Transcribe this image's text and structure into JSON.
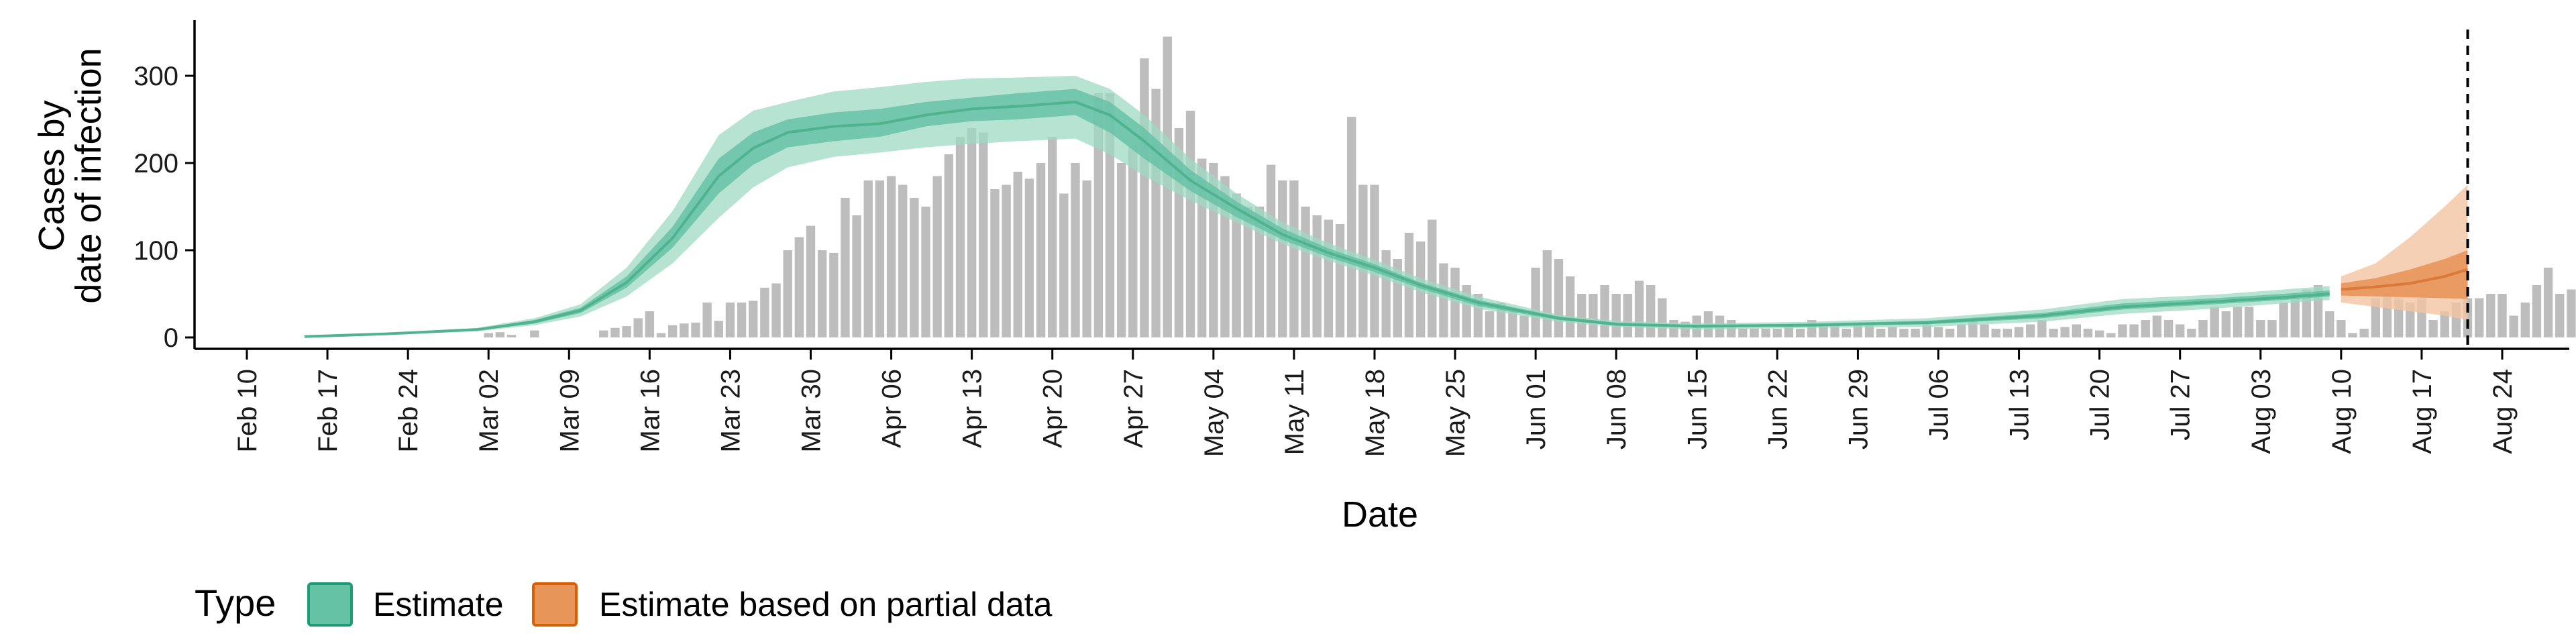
{
  "chart_data": {
    "type": "area",
    "title": "",
    "xlabel": "Date",
    "ylabel_lines": [
      "Cases by",
      "date of infection"
    ],
    "y_range": [
      0,
      360
    ],
    "y_ticks": [
      0,
      100,
      200,
      300
    ],
    "x_range": [
      "2020-02-06",
      "2020-08-28"
    ],
    "x_tick_dates": [
      "2020-02-10",
      "2020-02-17",
      "2020-02-24",
      "2020-03-02",
      "2020-03-09",
      "2020-03-16",
      "2020-03-23",
      "2020-03-30",
      "2020-04-06",
      "2020-04-13",
      "2020-04-20",
      "2020-04-27",
      "2020-05-04",
      "2020-05-11",
      "2020-05-18",
      "2020-05-25",
      "2020-06-01",
      "2020-06-08",
      "2020-06-15",
      "2020-06-22",
      "2020-06-29",
      "2020-07-06",
      "2020-07-13",
      "2020-07-20",
      "2020-07-27",
      "2020-08-03",
      "2020-08-10",
      "2020-08-17",
      "2020-08-24"
    ],
    "x_tick_labels": [
      "Feb 10",
      "Feb 17",
      "Feb 24",
      "Mar 02",
      "Mar 09",
      "Mar 16",
      "Mar 23",
      "Mar 30",
      "Apr 06",
      "Apr 13",
      "Apr 20",
      "Apr 27",
      "May 04",
      "May 11",
      "May 18",
      "May 25",
      "Jun 01",
      "Jun 08",
      "Jun 15",
      "Jun 22",
      "Jun 29",
      "Jul 06",
      "Jul 13",
      "Jul 20",
      "Jul 27",
      "Aug 03",
      "Aug 10",
      "Aug 17",
      "Aug 24"
    ],
    "vline_date": "2020-08-21",
    "legend": {
      "title": "Type",
      "position": "bottom-left",
      "entries": [
        {
          "label": "Estimate",
          "fill": "#66c2a5",
          "stroke": "#1b9e77"
        },
        {
          "label": "Estimate based on partial data",
          "fill": "#e8955a",
          "stroke": "#d95f02"
        }
      ]
    },
    "colors": {
      "bars": "#bdbdbd",
      "estimate_outer": "#9fd9c4",
      "estimate_inner": "#66c2a5",
      "partial_outer": "#f3c4a2",
      "partial_inner": "#e8955a",
      "axis": "#000000"
    },
    "bars": {
      "start_date": "2020-02-28",
      "values": [
        0,
        0,
        0,
        5,
        6,
        3,
        0,
        8,
        0,
        0,
        0,
        0,
        0,
        8,
        11,
        13,
        22,
        30,
        5,
        14,
        16,
        17,
        40,
        19,
        40,
        40,
        42,
        57,
        62,
        100,
        115,
        128,
        100,
        97,
        160,
        140,
        180,
        180,
        185,
        175,
        160,
        150,
        185,
        210,
        230,
        240,
        235,
        170,
        175,
        190,
        182,
        200,
        230,
        165,
        200,
        180,
        280,
        280,
        200,
        220,
        320,
        285,
        345,
        240,
        260,
        205,
        200,
        185,
        165,
        150,
        150,
        198,
        180,
        180,
        150,
        140,
        135,
        130,
        253,
        175,
        175,
        100,
        90,
        120,
        110,
        135,
        85,
        80,
        60,
        50,
        30,
        40,
        30,
        25,
        80,
        100,
        90,
        70,
        50,
        50,
        60,
        50,
        50,
        65,
        60,
        45,
        20,
        18,
        25,
        30,
        25,
        20,
        10,
        10,
        10,
        10,
        15,
        10,
        20,
        15,
        15,
        10,
        15,
        15,
        10,
        12,
        10,
        10,
        15,
        12,
        10,
        15,
        20,
        15,
        10,
        10,
        12,
        15,
        20,
        10,
        12,
        15,
        10,
        8,
        5,
        15,
        15,
        20,
        25,
        20,
        15,
        10,
        20,
        35,
        30,
        35,
        35,
        20,
        20,
        40,
        45,
        55,
        60,
        30,
        20,
        5,
        10,
        45,
        50,
        45,
        40,
        45,
        20,
        30,
        40,
        45,
        45,
        50,
        50,
        25,
        40,
        60,
        80,
        50,
        55
      ]
    },
    "estimate": {
      "dates": [
        "2020-02-15",
        "2020-02-22",
        "2020-03-01",
        "2020-03-06",
        "2020-03-10",
        "2020-03-14",
        "2020-03-18",
        "2020-03-22",
        "2020-03-25",
        "2020-03-28",
        "2020-04-01",
        "2020-04-05",
        "2020-04-09",
        "2020-04-13",
        "2020-04-17",
        "2020-04-22",
        "2020-04-25",
        "2020-04-28",
        "2020-05-02",
        "2020-05-06",
        "2020-05-10",
        "2020-05-14",
        "2020-05-18",
        "2020-05-22",
        "2020-05-27",
        "2020-06-03",
        "2020-06-08",
        "2020-06-15",
        "2020-06-25",
        "2020-07-05",
        "2020-07-15",
        "2020-07-22",
        "2020-07-30",
        "2020-08-05",
        "2020-08-09"
      ],
      "outer_lo": [
        0,
        3,
        7,
        14,
        24,
        47,
        85,
        137,
        172,
        195,
        207,
        212,
        218,
        222,
        225,
        228,
        210,
        185,
        157,
        132,
        107,
        88,
        71,
        52,
        33,
        18,
        12,
        9,
        11,
        12,
        18,
        27,
        33,
        39,
        43
      ],
      "inner_lo": [
        0,
        3,
        8,
        16,
        28,
        57,
        103,
        165,
        198,
        218,
        225,
        230,
        242,
        248,
        250,
        255,
        235,
        205,
        168,
        138,
        112,
        92,
        75,
        56,
        36,
        20,
        14,
        11,
        13,
        15,
        22,
        32,
        38,
        43,
        47
      ],
      "median": [
        1,
        4,
        9,
        18,
        31,
        63,
        114,
        185,
        217,
        235,
        242,
        245,
        255,
        262,
        265,
        270,
        255,
        225,
        180,
        148,
        118,
        97,
        80,
        60,
        40,
        22,
        15,
        13,
        14,
        17,
        25,
        35,
        41,
        46,
        50
      ],
      "inner_hi": [
        1,
        4,
        10,
        20,
        34,
        70,
        127,
        205,
        235,
        250,
        258,
        262,
        270,
        275,
        280,
        285,
        270,
        240,
        192,
        156,
        125,
        102,
        84,
        63,
        43,
        24,
        17,
        14,
        16,
        19,
        28,
        39,
        45,
        50,
        54
      ],
      "outer_hi": [
        1,
        5,
        11,
        22,
        38,
        80,
        145,
        232,
        260,
        270,
        282,
        287,
        293,
        297,
        298,
        300,
        285,
        255,
        205,
        165,
        132,
        108,
        89,
        68,
        47,
        26,
        19,
        16,
        18,
        22,
        32,
        44,
        49,
        55,
        59
      ]
    },
    "partial": {
      "dates": [
        "2020-08-10",
        "2020-08-13",
        "2020-08-16",
        "2020-08-19",
        "2020-08-21"
      ],
      "outer_lo": [
        40,
        35,
        30,
        25,
        20
      ],
      "inner_lo": [
        48,
        47,
        46,
        45,
        44
      ],
      "median": [
        55,
        58,
        62,
        70,
        78
      ],
      "inner_hi": [
        62,
        68,
        78,
        90,
        100
      ],
      "outer_hi": [
        70,
        85,
        115,
        150,
        175
      ]
    }
  }
}
